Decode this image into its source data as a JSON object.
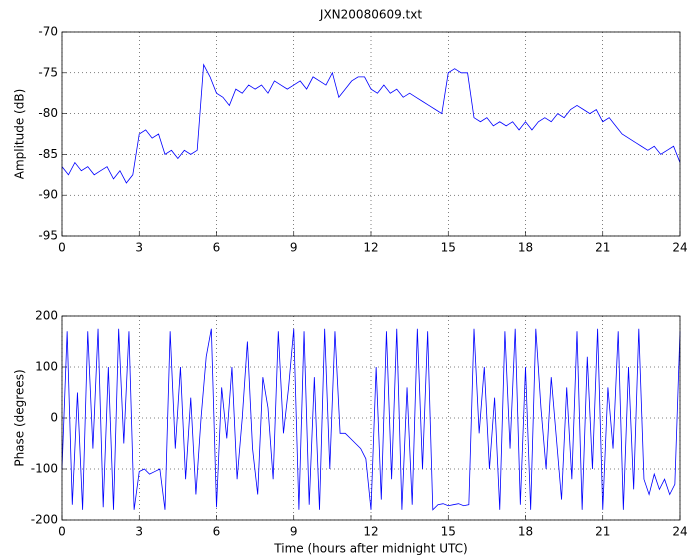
{
  "chart_data": [
    {
      "type": "line",
      "title": "JXN20080609.txt",
      "ylabel": "Amplitude (dB)",
      "grid": true,
      "xlim": [
        0,
        24
      ],
      "xticks": [
        0,
        3,
        6,
        9,
        12,
        15,
        18,
        21,
        24
      ],
      "ylim": [
        -95,
        -70
      ],
      "yticks": [
        -95,
        -90,
        -85,
        -80,
        -75,
        -70
      ],
      "x": [
        0,
        0.25,
        0.5,
        0.75,
        1,
        1.25,
        1.5,
        1.75,
        2,
        2.25,
        2.5,
        2.75,
        3,
        3.25,
        3.5,
        3.75,
        4,
        4.25,
        4.5,
        4.75,
        5,
        5.25,
        5.5,
        5.75,
        6,
        6.25,
        6.5,
        6.75,
        7,
        7.25,
        7.5,
        7.75,
        8,
        8.25,
        8.5,
        8.75,
        9,
        9.25,
        9.5,
        9.75,
        10,
        10.25,
        10.5,
        10.75,
        11,
        11.25,
        11.5,
        11.75,
        12,
        12.25,
        12.5,
        12.75,
        13,
        13.25,
        13.5,
        13.75,
        14,
        14.25,
        14.5,
        14.75,
        15,
        15.25,
        15.5,
        15.75,
        16,
        16.25,
        16.5,
        16.75,
        17,
        17.25,
        17.5,
        17.75,
        18,
        18.25,
        18.5,
        18.75,
        19,
        19.25,
        19.5,
        19.75,
        20,
        20.25,
        20.5,
        20.75,
        21,
        21.25,
        21.5,
        21.75,
        22,
        22.25,
        22.5,
        22.75,
        23,
        23.25,
        23.5,
        23.75,
        24
      ],
      "series": [
        {
          "color": "#0000ff",
          "values": [
            -86.5,
            -87.5,
            -86,
            -87,
            -86.5,
            -87.5,
            -87,
            -86.5,
            -88,
            -87,
            -88.5,
            -87.5,
            -82.5,
            -82,
            -83,
            -82.5,
            -85,
            -84.5,
            -85.5,
            -84.5,
            -85,
            -84.5,
            -74,
            -75.5,
            -77.5,
            -78,
            -79,
            -77,
            -77.5,
            -76.5,
            -77,
            -76.5,
            -77.5,
            -76,
            -76.5,
            -77,
            -76.5,
            -76,
            -77,
            -75.5,
            -76,
            -76.5,
            -75,
            -78,
            -77,
            -76,
            -75.5,
            -75.5,
            -77,
            -77.5,
            -76.5,
            -77.5,
            -77,
            -78,
            -77.5,
            -78,
            -78.5,
            -79,
            -79.5,
            -80,
            -75,
            -74.5,
            -75,
            -75,
            -80.5,
            -81,
            -80.5,
            -81.5,
            -81,
            -81.5,
            -81,
            -82,
            -81,
            -82,
            -81,
            -80.5,
            -81,
            -80,
            -80.5,
            -79.5,
            -79,
            -79.5,
            -80,
            -79.5,
            -81,
            -80.5,
            -81.5,
            -82.5,
            -83,
            -83.5,
            -84,
            -84.5,
            -84,
            -85,
            -84.5,
            -84,
            -86
          ]
        }
      ]
    },
    {
      "type": "line",
      "ylabel": "Phase (degrees)",
      "xlabel": "Time (hours after midnight UTC)",
      "grid": true,
      "xlim": [
        0,
        24
      ],
      "xticks": [
        0,
        3,
        6,
        9,
        12,
        15,
        18,
        21,
        24
      ],
      "ylim": [
        -200,
        200
      ],
      "yticks": [
        -200,
        -100,
        0,
        100,
        200
      ],
      "x": [
        0,
        0.2,
        0.4,
        0.6,
        0.8,
        1,
        1.2,
        1.4,
        1.6,
        1.8,
        2,
        2.2,
        2.4,
        2.6,
        2.8,
        3,
        3.2,
        3.4,
        3.6,
        3.8,
        4,
        4.2,
        4.4,
        4.6,
        4.8,
        5,
        5.2,
        5.4,
        5.6,
        5.8,
        6,
        6.2,
        6.4,
        6.6,
        6.8,
        7,
        7.2,
        7.4,
        7.6,
        7.8,
        8,
        8.2,
        8.4,
        8.6,
        8.8,
        9,
        9.2,
        9.4,
        9.6,
        9.8,
        10,
        10.2,
        10.4,
        10.6,
        10.8,
        11,
        11.2,
        11.4,
        11.6,
        11.8,
        12,
        12.2,
        12.4,
        12.6,
        12.8,
        13,
        13.2,
        13.4,
        13.6,
        13.8,
        14,
        14.2,
        14.4,
        14.6,
        14.8,
        15,
        15.2,
        15.4,
        15.6,
        15.8,
        16,
        16.2,
        16.4,
        16.6,
        16.8,
        17,
        17.2,
        17.4,
        17.6,
        17.8,
        18,
        18.2,
        18.4,
        18.6,
        18.8,
        19,
        19.2,
        19.4,
        19.6,
        19.8,
        20,
        20.2,
        20.4,
        20.6,
        20.8,
        21,
        21.2,
        21.4,
        21.6,
        21.8,
        22,
        22.2,
        22.4,
        22.6,
        22.8,
        23,
        23.2,
        23.4,
        23.6,
        23.8,
        24
      ],
      "series": [
        {
          "color": "#0000ff",
          "values": [
            -100,
            170,
            -170,
            50,
            -180,
            170,
            -60,
            175,
            -175,
            100,
            -180,
            175,
            -50,
            170,
            -180,
            -105,
            -100,
            -110,
            -105,
            -100,
            -180,
            170,
            -60,
            100,
            -120,
            40,
            -150,
            0,
            120,
            175,
            -175,
            60,
            -40,
            100,
            -120,
            0,
            150,
            -60,
            -150,
            80,
            20,
            -120,
            170,
            -30,
            60,
            175,
            -180,
            170,
            -170,
            80,
            -180,
            175,
            -100,
            170,
            -30,
            -30,
            -40,
            -50,
            -60,
            -80,
            -180,
            100,
            -160,
            170,
            -120,
            175,
            -180,
            60,
            -170,
            175,
            -100,
            170,
            -180,
            -170,
            -168,
            -172,
            -170,
            -168,
            -172,
            -170,
            175,
            -30,
            100,
            -100,
            40,
            -180,
            170,
            -60,
            175,
            -170,
            100,
            -180,
            175,
            20,
            -100,
            80,
            -40,
            -160,
            60,
            -120,
            170,
            -180,
            120,
            -100,
            175,
            -180,
            60,
            -60,
            170,
            -180,
            100,
            -140,
            175,
            -120,
            -150,
            -110,
            -140,
            -120,
            -150,
            -130,
            170
          ]
        }
      ]
    }
  ]
}
